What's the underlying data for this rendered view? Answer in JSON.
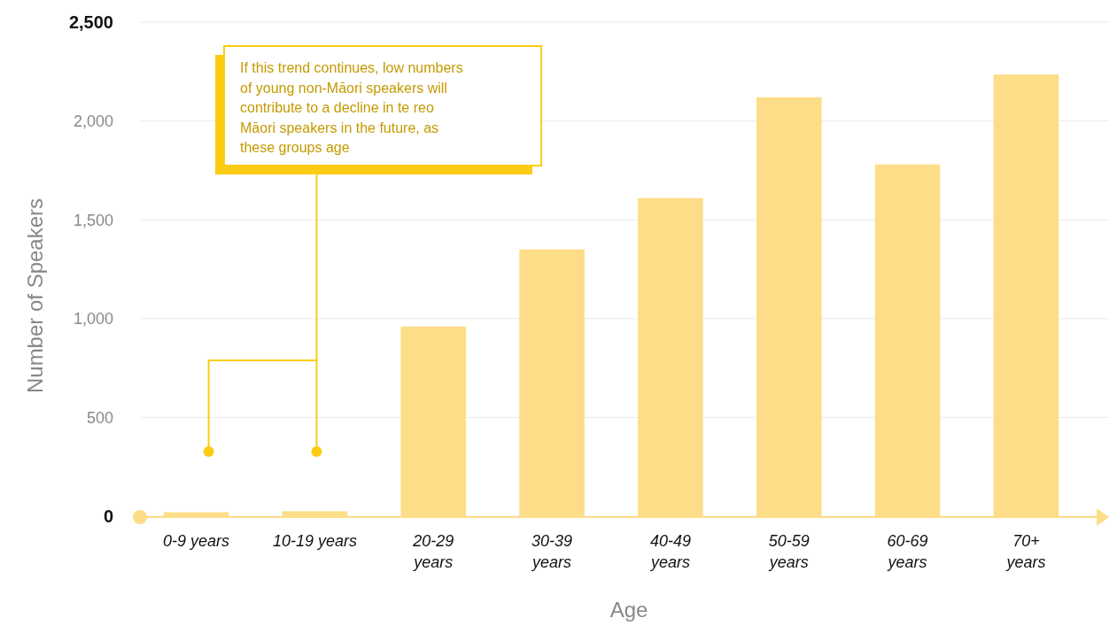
{
  "chart_data": {
    "type": "bar",
    "xlabel": "Age",
    "ylabel": "Number of Speakers",
    "categories": [
      "0-9 years",
      "10-19 years",
      "20-29 years",
      "30-39 years",
      "40-49 years",
      "50-59 years",
      "60-69 years",
      "70+ years"
    ],
    "values": [
      20,
      25,
      960,
      1350,
      1610,
      2120,
      1780,
      2235
    ],
    "color": "#fddd88",
    "ylim": [
      0,
      2500
    ],
    "yticks": [
      0,
      500,
      {
        "value": 1000,
        "label": "1,000"
      },
      {
        "value": 1500,
        "label": "1,500"
      },
      {
        "value": 2000,
        "label": "2,000"
      },
      {
        "value": 2500,
        "label": "2,500"
      }
    ],
    "grid": "y",
    "annotations": [
      "If this trend continues, low numbers of young non-Māori speakers will contribute to a decline in te reo Māori speakers in the future, as these groups age"
    ]
  }
}
